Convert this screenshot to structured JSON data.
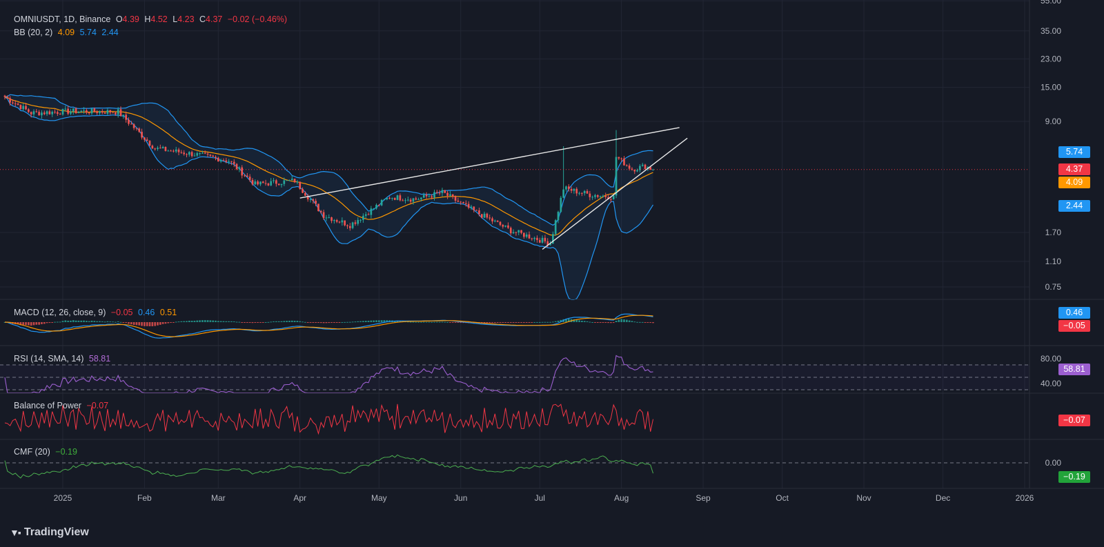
{
  "header": {
    "symbol": "OMNIUSDT, 1D, Binance",
    "o_label": "O",
    "o": "4.39",
    "h_label": "H",
    "h": "4.52",
    "l_label": "L",
    "l": "4.23",
    "c_label": "C",
    "c": "4.37",
    "change": "−0.02 (−0.46%)"
  },
  "bb_legend": {
    "name": "BB (20, 2)",
    "basis": "4.09",
    "upper": "5.74",
    "lower": "2.44"
  },
  "macd_legend": {
    "name": "MACD (12, 26, close, 9)",
    "hist": "−0.05",
    "macd": "0.46",
    "signal": "0.51"
  },
  "rsi_legend": {
    "name": "RSI (14, SMA, 14)",
    "value": "58.81"
  },
  "bop_legend": {
    "name": "Balance of Power",
    "value": "−0.07"
  },
  "cmf_legend": {
    "name": "CMF (20)",
    "value": "−0.19"
  },
  "price_badges": {
    "bb_upper": "5.74",
    "close": "4.37",
    "bb_basis": "4.09",
    "bb_lower": "2.44"
  },
  "macd_badges": {
    "macd": "0.46",
    "hist": "−0.05"
  },
  "rsi_badge": "58.81",
  "bop_badge": "−0.07",
  "cmf_badge": "−0.19",
  "branding": "TradingView",
  "colors": {
    "bg": "#161a25",
    "up": "#26a69a",
    "down": "#ef5350",
    "bb": "#2196f3",
    "basis": "#ff9800",
    "rsi": "#9c5fd0",
    "bop": "#f23645",
    "cmf": "#4caf50",
    "grid": "#222634"
  },
  "chart_data": [
    {
      "type": "candlestick",
      "title": "OMNIUSDT, 1D, Binance",
      "x_ticks": [
        "2025",
        "Feb",
        "Mar",
        "Apr",
        "May",
        "Jun",
        "Jul",
        "Aug",
        "Sep",
        "Oct",
        "Nov",
        "Dec",
        "2026"
      ],
      "y_ticks": [
        "55.00",
        "35.00",
        "23.00",
        "15.00",
        "9.00",
        "5.74",
        "4.37",
        "4.09",
        "2.44",
        "1.70",
        "1.10",
        "0.75"
      ],
      "y_scale": "log",
      "ylim": [
        0.55,
        60
      ],
      "close_anchors": [
        {
          "date": "2024-12-10",
          "close": 13.0
        },
        {
          "date": "2024-12-20",
          "close": 10.2
        },
        {
          "date": "2025-01-05",
          "close": 10.5
        },
        {
          "date": "2025-01-22",
          "close": 10.4
        },
        {
          "date": "2025-02-05",
          "close": 6.0
        },
        {
          "date": "2025-02-20",
          "close": 5.5
        },
        {
          "date": "2025-03-05",
          "close": 5.0
        },
        {
          "date": "2025-03-15",
          "close": 3.5
        },
        {
          "date": "2025-03-30",
          "close": 3.7
        },
        {
          "date": "2025-04-10",
          "close": 2.2
        },
        {
          "date": "2025-04-20",
          "close": 1.9
        },
        {
          "date": "2025-05-05",
          "close": 2.9
        },
        {
          "date": "2025-05-15",
          "close": 2.8
        },
        {
          "date": "2025-05-25",
          "close": 3.1
        },
        {
          "date": "2025-06-05",
          "close": 2.4
        },
        {
          "date": "2025-06-20",
          "close": 1.75
        },
        {
          "date": "2025-07-05",
          "close": 1.45
        },
        {
          "date": "2025-07-10",
          "close": 3.3
        },
        {
          "date": "2025-07-20",
          "close": 3.0
        },
        {
          "date": "2025-07-29",
          "close": 2.9
        },
        {
          "date": "2025-07-30",
          "close": 5.3
        },
        {
          "date": "2025-08-05",
          "close": 4.4
        },
        {
          "date": "2025-08-10",
          "close": 4.6
        },
        {
          "date": "2025-08-13",
          "close": 4.37
        }
      ],
      "bollinger": {
        "period": 20,
        "stddev": 2,
        "basis": 4.09,
        "upper": 5.74,
        "lower": 2.44
      },
      "current_price": 4.37,
      "trendlines": [
        {
          "from": {
            "date": "2025-04-01",
            "price": 2.85
          },
          "to": {
            "date": "2025-08-23",
            "price": 8.2
          }
        },
        {
          "from": {
            "date": "2025-07-02",
            "price": 1.32
          },
          "to": {
            "date": "2025-08-26",
            "price": 7.0
          }
        }
      ]
    },
    {
      "type": "line",
      "title": "MACD (12, 26, close, 9)",
      "series": [
        {
          "name": "MACD",
          "values": [
            0.46
          ]
        },
        {
          "name": "Signal",
          "values": [
            0.51
          ]
        },
        {
          "name": "Histogram",
          "values": [
            -0.05
          ]
        }
      ]
    },
    {
      "type": "line",
      "title": "RSI (14, SMA, 14)",
      "y_ticks": [
        "80.00",
        "40.00"
      ],
      "bands": [
        70,
        50,
        30
      ],
      "last_value": 58.81
    },
    {
      "type": "line",
      "title": "Balance of Power",
      "last_value": -0.07
    },
    {
      "type": "line",
      "title": "CMF (20)",
      "y_ticks": [
        "0.00"
      ],
      "last_value": -0.19
    }
  ]
}
